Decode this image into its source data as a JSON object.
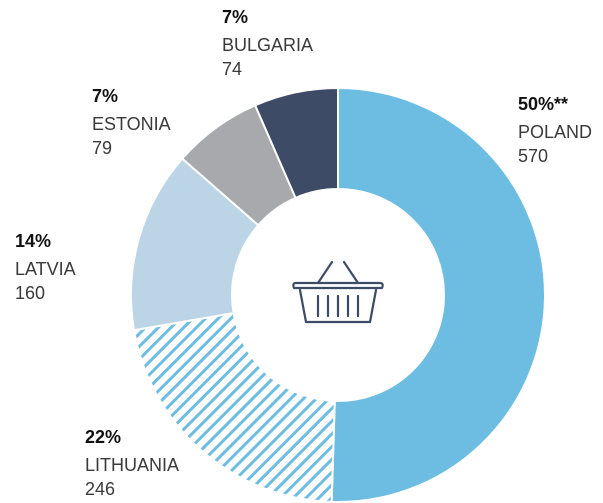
{
  "chart_data": {
    "type": "donut",
    "categories": [
      "POLAND",
      "LITHUANIA",
      "LATVIA",
      "ESTONIA",
      "BULGARIA"
    ],
    "values": [
      570,
      246,
      160,
      79,
      74
    ],
    "share_labels": [
      "50%**",
      "22%",
      "14%",
      "7%",
      "7%"
    ],
    "colors": [
      "#6dbde2",
      "#6dbde2",
      "#bcd5e6",
      "#a7a9ac",
      "#3d4b66"
    ],
    "hatched": [
      false,
      true,
      false,
      false,
      false
    ]
  }
}
